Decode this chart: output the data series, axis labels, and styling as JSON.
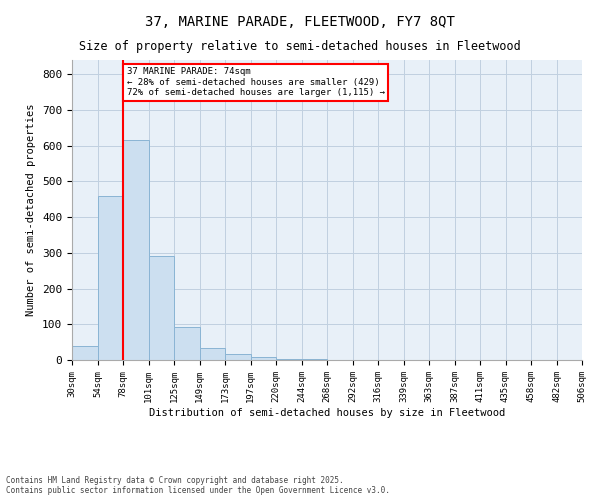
{
  "title1": "37, MARINE PARADE, FLEETWOOD, FY7 8QT",
  "title2": "Size of property relative to semi-detached houses in Fleetwood",
  "xlabel": "Distribution of semi-detached houses by size in Fleetwood",
  "ylabel": "Number of semi-detached properties",
  "bar_values": [
    40,
    460,
    615,
    290,
    92,
    35,
    18,
    9,
    4,
    2,
    1,
    1,
    0,
    0,
    0,
    0,
    0,
    0,
    0,
    0
  ],
  "bin_labels": [
    "30sqm",
    "54sqm",
    "78sqm",
    "101sqm",
    "125sqm",
    "149sqm",
    "173sqm",
    "197sqm",
    "220sqm",
    "244sqm",
    "268sqm",
    "292sqm",
    "316sqm",
    "339sqm",
    "363sqm",
    "387sqm",
    "411sqm",
    "435sqm",
    "458sqm",
    "482sqm",
    "506sqm"
  ],
  "bar_color": "#ccdff0",
  "bar_edge_color": "#8ab4d4",
  "bg_color": "#e8f0f8",
  "grid_color": "#c0d0e0",
  "vline_color": "red",
  "vline_bin": 2,
  "annotation_title": "37 MARINE PARADE: 74sqm",
  "annotation_line1": "← 28% of semi-detached houses are smaller (429)",
  "annotation_line2": "72% of semi-detached houses are larger (1,115) →",
  "annotation_box_color": "red",
  "footnote1": "Contains HM Land Registry data © Crown copyright and database right 2025.",
  "footnote2": "Contains public sector information licensed under the Open Government Licence v3.0.",
  "ylim": [
    0,
    840
  ],
  "yticks": [
    0,
    100,
    200,
    300,
    400,
    500,
    600,
    700,
    800
  ],
  "n_bins": 20,
  "n_labels": 21
}
